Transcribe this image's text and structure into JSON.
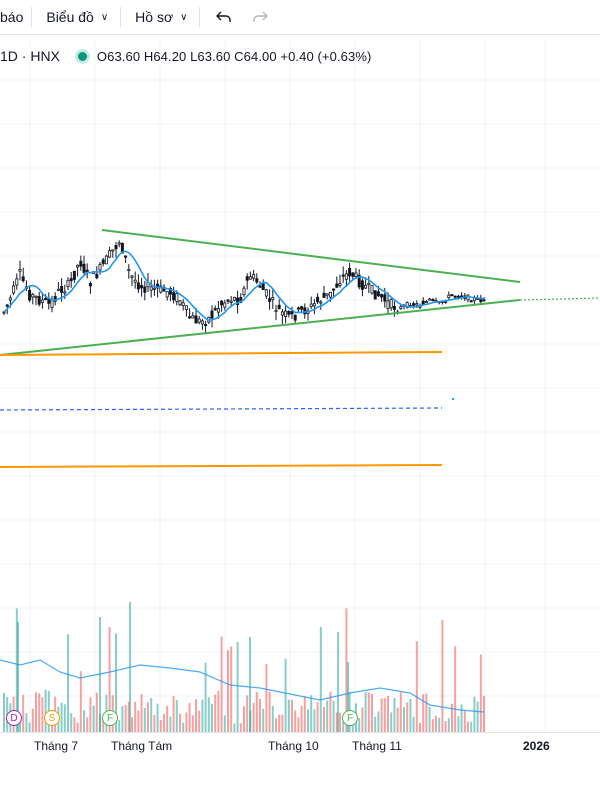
{
  "toolbar": {
    "alerts_label": "báo",
    "chart_type_label": "Biểu đồ",
    "profile_label": "Hồ sơ",
    "undo_icon": "undo-icon",
    "redo_icon": "redo-icon"
  },
  "legend": {
    "interval_exchange": "1D · HNX",
    "status_color": "#089981",
    "ohlc": "O63.60 H64.20 L63.60 C64.00 +0.40 (+0.63%)"
  },
  "x_axis": {
    "labels": [
      "Tháng 7",
      "Tháng Tám",
      "Tháng 10",
      "Tháng 11",
      "2026"
    ]
  },
  "events": [
    {
      "letter": "D",
      "kind": "dividend",
      "color": "#9c27b0"
    },
    {
      "letter": "S",
      "kind": "split",
      "color": "#ff9800"
    },
    {
      "letter": "F",
      "kind": "financials",
      "color": "#4caf50"
    },
    {
      "letter": "F",
      "kind": "financials",
      "color": "#4caf50"
    }
  ],
  "colors": {
    "up": "#131722",
    "trendline": "#4caf50",
    "ma": "#2196f3",
    "horizontal": "#ff9800",
    "dashed": "#2962ff",
    "vol_up": "#26a69a",
    "vol_down": "#ef5350",
    "vol_ma": "#2196f3"
  }
}
